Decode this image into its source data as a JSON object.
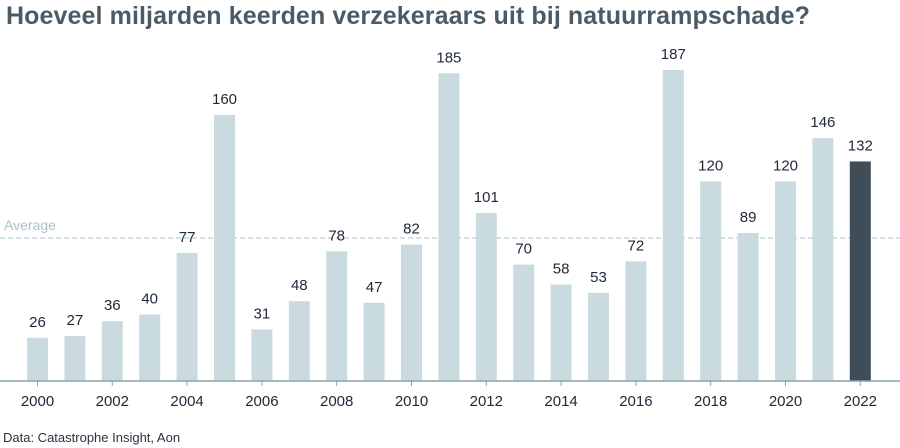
{
  "chart_data": {
    "type": "bar",
    "title": "Hoeveel miljarden keerden verzekeraars uit bij natuurrampschade?",
    "source": "Data: Catastrophe Insight, Aon",
    "categories": [
      "2000",
      "2001",
      "2002",
      "2003",
      "2004",
      "2005",
      "2006",
      "2007",
      "2008",
      "2009",
      "2010",
      "2011",
      "2012",
      "2013",
      "2014",
      "2015",
      "2016",
      "2017",
      "2018",
      "2019",
      "2020",
      "2021",
      "2022"
    ],
    "values": [
      26,
      27,
      36,
      40,
      77,
      160,
      31,
      48,
      78,
      47,
      82,
      185,
      101,
      70,
      58,
      53,
      72,
      187,
      120,
      89,
      120,
      146,
      132
    ],
    "tick_labels": [
      "2000",
      "2002",
      "2004",
      "2006",
      "2008",
      "2010",
      "2012",
      "2014",
      "2016",
      "2018",
      "2020",
      "2022"
    ],
    "highlight": "2022",
    "reference_line": {
      "label": "Average",
      "value": 86
    },
    "ylim": [
      0,
      190
    ],
    "grid": false,
    "data_labels": true,
    "colors": {
      "bar": "#c9dbdf",
      "highlight": "#3e4d58",
      "axis": "#8aa3ab",
      "average": "#a9c3c8",
      "title": "#4b5b66"
    }
  }
}
